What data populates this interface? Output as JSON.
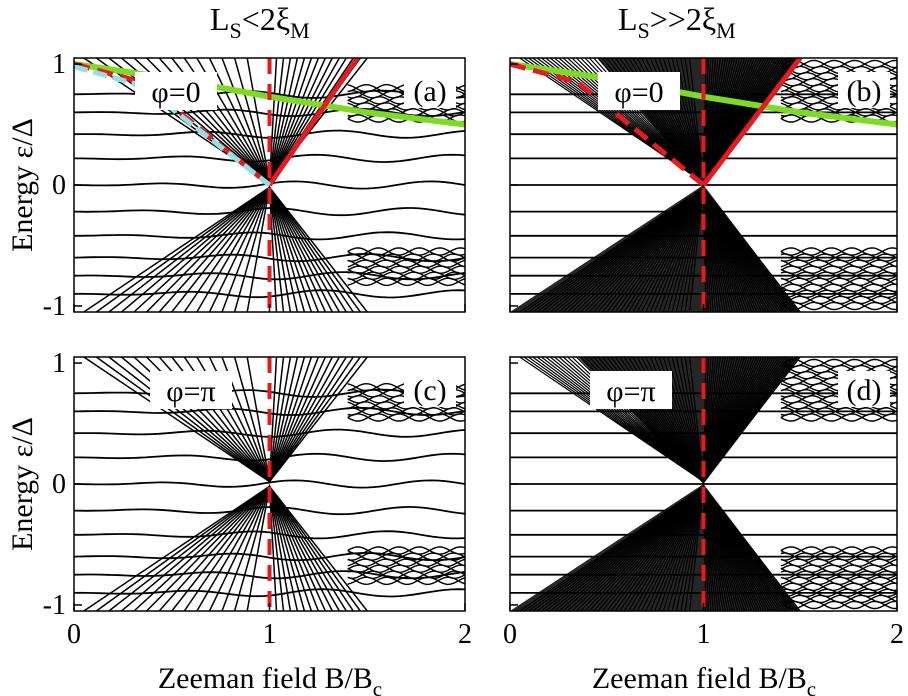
{
  "figure": {
    "column_titles": [
      {
        "main": "L",
        "sub1": "S",
        "mid": "<2ξ",
        "sub2": "M"
      },
      {
        "main": "L",
        "sub1": "S",
        "mid": ">>2ξ",
        "sub2": "M"
      }
    ],
    "y_label": "Energy ε/Δ",
    "x_label_main": "Zeeman field B/B",
    "x_label_sub": "c"
  },
  "chart_data": [
    {
      "type": "line",
      "panel": "(a)",
      "annotation": "φ=0",
      "xlim": [
        0,
        2
      ],
      "ylim": [
        -1.05,
        1.05
      ],
      "x_ticks": [
        "0",
        "1",
        "2"
      ],
      "y_ticks": [
        "-1",
        "0",
        "1"
      ],
      "critical_field_line": {
        "x": 1,
        "color": "#e8191f",
        "style": "dashed"
      },
      "series": [
        {
          "color": "#7ddc1f",
          "x": [
            0,
            0.5,
            1.0,
            1.5,
            2.0
          ],
          "y": [
            1.0,
            0.88,
            0.73,
            0.6,
            0.5
          ]
        },
        {
          "color": "#e8191f",
          "x": [
            0,
            0.35,
            1.0
          ],
          "y": [
            1.0,
            0.85,
            0.0
          ]
        },
        {
          "color": "#e8191f",
          "x": [
            1.0,
            1.45
          ],
          "y": [
            0.0,
            1.05
          ]
        },
        {
          "color": "#8fe0e8",
          "x": [
            0,
            0.35,
            1.0
          ],
          "y": [
            0.98,
            0.82,
            0.0
          ]
        }
      ]
    },
    {
      "type": "line",
      "panel": "(b)",
      "annotation": "φ=0",
      "xlim": [
        0,
        2
      ],
      "ylim": [
        -1.05,
        1.05
      ],
      "x_ticks": [
        "0",
        "1",
        "2"
      ],
      "y_ticks": [
        "-1",
        "0",
        "1"
      ],
      "critical_field_line": {
        "x": 1,
        "color": "#e8191f",
        "style": "dashed"
      },
      "series": [
        {
          "color": "#7ddc1f",
          "x": [
            0,
            0.5,
            1.0,
            1.5,
            2.0
          ],
          "y": [
            1.0,
            0.88,
            0.73,
            0.6,
            0.5
          ]
        },
        {
          "color": "#e8191f",
          "x": [
            0,
            0.35,
            1.0
          ],
          "y": [
            1.0,
            0.85,
            0.0
          ]
        },
        {
          "color": "#e8191f",
          "x": [
            1.0,
            1.5
          ],
          "y": [
            0.0,
            1.05
          ]
        }
      ]
    },
    {
      "type": "line",
      "panel": "(c)",
      "annotation": "φ=π",
      "xlim": [
        0,
        2
      ],
      "ylim": [
        -1.05,
        1.05
      ],
      "x_ticks": [
        "0",
        "1",
        "2"
      ],
      "y_ticks": [
        "-1",
        "0",
        "1"
      ],
      "critical_field_line": {
        "x": 1,
        "color": "#e8191f",
        "style": "dashed"
      },
      "series": []
    },
    {
      "type": "line",
      "panel": "(d)",
      "annotation": "φ=π",
      "xlim": [
        0,
        2
      ],
      "ylim": [
        -1.05,
        1.05
      ],
      "x_ticks": [
        "0",
        "1",
        "2"
      ],
      "y_ticks": [
        "-1",
        "0",
        "1"
      ],
      "critical_field_line": {
        "x": 1,
        "color": "#e8191f",
        "style": "dashed"
      },
      "series": []
    }
  ],
  "colors": {
    "axis": "#000000",
    "critical": "#e8191f",
    "green": "#7ddc1f",
    "cyan": "#8fe0e8"
  }
}
